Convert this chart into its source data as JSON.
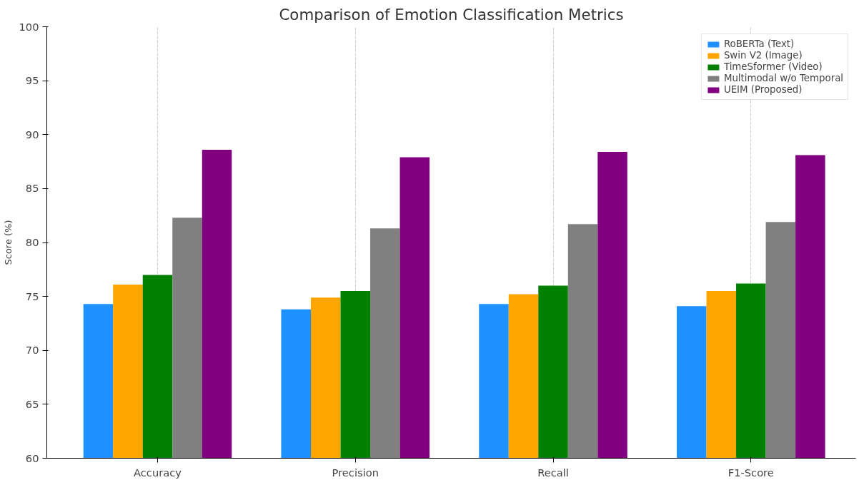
{
  "chart_data": {
    "type": "bar",
    "title": "Comparison of Emotion Classification Metrics",
    "ylabel": "Score (%)",
    "categories": [
      "Accuracy",
      "Precision",
      "Recall",
      "F1-Score"
    ],
    "series": [
      {
        "name": "RoBERTa (Text)",
        "color": "#1e90ff",
        "values": [
          74.3,
          73.8,
          74.3,
          74.1
        ]
      },
      {
        "name": "Swin V2 (Image)",
        "color": "#ffa500",
        "values": [
          76.1,
          74.9,
          75.2,
          75.5
        ]
      },
      {
        "name": "TimeSformer (Video)",
        "color": "#008000",
        "values": [
          77.0,
          75.5,
          76.0,
          76.2
        ]
      },
      {
        "name": "Multimodal w/o Temporal",
        "color": "#808080",
        "values": [
          82.3,
          81.3,
          81.7,
          81.9
        ]
      },
      {
        "name": "UEIM (Proposed)",
        "color": "#800080",
        "values": [
          88.6,
          87.9,
          88.4,
          88.1
        ]
      }
    ],
    "ylim": [
      60,
      100
    ],
    "yticks": [
      60,
      65,
      70,
      75,
      80,
      85,
      90,
      95,
      100
    ],
    "grid": "x",
    "legend": "top right"
  }
}
